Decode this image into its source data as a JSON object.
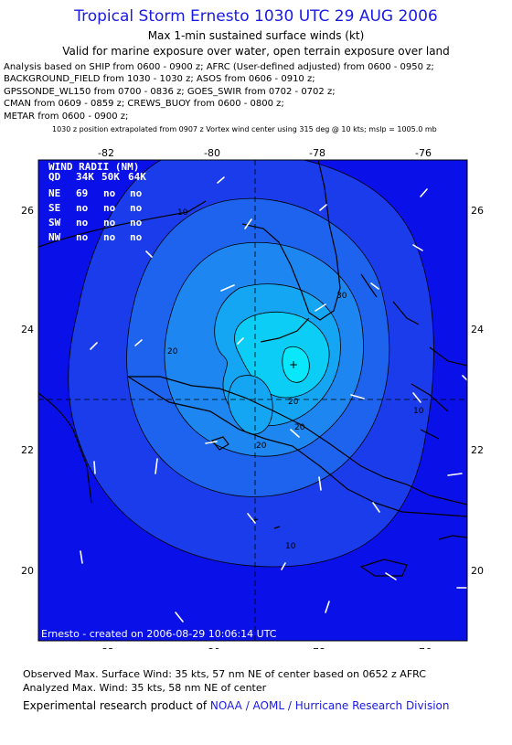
{
  "header": {
    "title": "Tropical Storm Ernesto 1030 UTC 29 AUG 2006",
    "subtitle": "Max 1-min sustained surface winds (kt)",
    "validity": "Valid for marine exposure over water, open terrain exposure over land",
    "analysis_lines": [
      "Analysis based on  SHIP from 0600 - 0900 z;  AFRC (User-defined adjusted) from 0600 - 0950 z;",
      "BACKGROUND_FIELD from 1030 - 1030 z;  ASOS from 0606 - 0910 z;",
      "GPSSONDE_WL150 from 0700 - 0836 z;  GOES_SWIR from 0702 - 0702 z;",
      "CMAN from 0609 - 0859 z;  CREWS_BUOY from 0600 - 0800 z;",
      "METAR from 0600 - 0900 z;"
    ],
    "position_note": "1030 z position extrapolated from 0907 z Vortex wind center using 315 deg @ 10 kts; mslp = 1005.0 mb"
  },
  "map": {
    "lon_ticks": [
      "-82",
      "-80",
      "-78",
      "-76"
    ],
    "lat_ticks": [
      "26",
      "24",
      "22",
      "20"
    ],
    "contour_labels": [
      "10",
      "20",
      "30",
      "20",
      "20",
      "20",
      "10",
      "10"
    ],
    "center_marker": "+",
    "colors": {
      "ocean": "#0a10e8",
      "level_10": "#1a3ceb",
      "level_15": "#1e63ee",
      "level_20": "#1e86f1",
      "level_25": "#15a6f3",
      "level_30": "#0ccdf6",
      "level_35": "#08e8fa",
      "land_outline": "#000000",
      "wind_barb": "#ffffff"
    },
    "credit": "Ernesto - created on 2006-08-29 10:06:14 UTC"
  },
  "wind_radii": {
    "title": "WIND RADII (NM)",
    "columns": [
      "QD",
      "34K",
      "50K",
      "64K"
    ],
    "rows": [
      [
        "NE",
        "69",
        "no",
        "no"
      ],
      [
        "SE",
        "no",
        "no",
        "no"
      ],
      [
        "SW",
        "no",
        "no",
        "no"
      ],
      [
        "NW",
        "no",
        "no",
        "no"
      ]
    ]
  },
  "footer": {
    "observed": "Observed Max. Surface Wind: 35 kts, 57 nm NE of center based on 0652 z AFRC",
    "analyzed": "Analyzed Max. Wind: 35 kts, 58 nm NE of center",
    "credit_prefix": "Experimental research product of ",
    "credit_link": "NOAA / AOML / Hurricane Research Division"
  }
}
